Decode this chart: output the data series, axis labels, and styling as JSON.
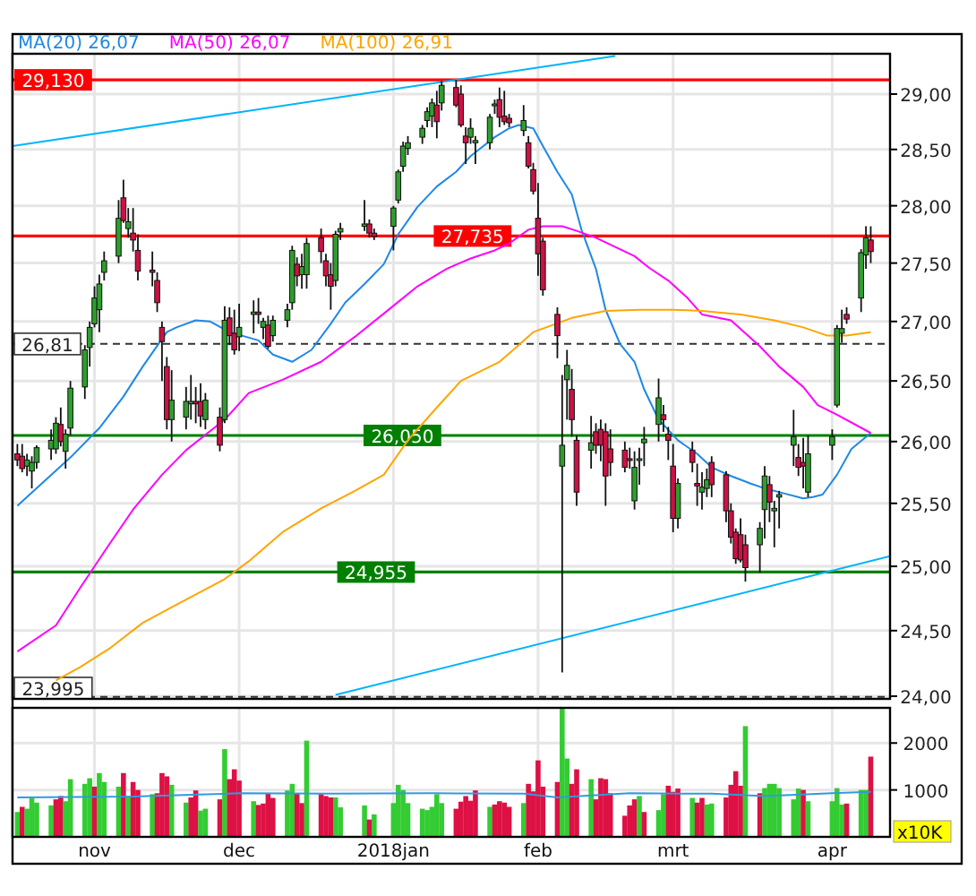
{
  "chart_data": [
    {
      "type": "candlestick",
      "log": "y",
      "grid": true,
      "legend": "top left",
      "tick_labels": "y",
      "xlim": [
        "2017-10-15",
        "2018-04-15"
      ],
      "xticks": [
        {
          "value": "2017-11-01",
          "label": null
        },
        {
          "value": "2017-12-01",
          "label": null
        },
        {
          "value": "2018-01-02",
          "label": null
        },
        {
          "value": "2018-02-01",
          "label": null
        },
        {
          "value": "2018-03-01",
          "label": null
        },
        {
          "value": "2018-04-03",
          "label": null
        }
      ],
      "ylim": [
        23.98,
        29.37
      ],
      "yticks": [
        {
          "value": 24,
          "label": "24,00"
        },
        {
          "value": 24.5,
          "label": "24,50"
        },
        {
          "value": 25,
          "label": "25,00"
        },
        {
          "value": 25.5,
          "label": "25,50"
        },
        {
          "value": 26,
          "label": "26,00"
        },
        {
          "value": 26.5,
          "label": "26,50"
        },
        {
          "value": 27,
          "label": "27,00"
        },
        {
          "value": 27.5,
          "label": "27,50"
        },
        {
          "value": 28,
          "label": "28,00"
        },
        {
          "value": 28.5,
          "label": "28,50"
        },
        {
          "value": 29,
          "label": "29,00"
        }
      ],
      "x": [
        "2017-10-16",
        "2017-10-17",
        "2017-10-18",
        "2017-10-19",
        "2017-10-20",
        "2017-10-23",
        "2017-10-24",
        "2017-10-25",
        "2017-10-26",
        "2017-10-27",
        "2017-10-30",
        "2017-10-31",
        "2017-11-01",
        "2017-11-02",
        "2017-11-03",
        "2017-11-06",
        "2017-11-07",
        "2017-11-08",
        "2017-11-09",
        "2017-11-10",
        "2017-11-13",
        "2017-11-14",
        "2017-11-15",
        "2017-11-16",
        "2017-11-17",
        "2017-11-20",
        "2017-11-21",
        "2017-11-22",
        "2017-11-23",
        "2017-11-24",
        "2017-11-27",
        "2017-11-28",
        "2017-11-29",
        "2017-11-30",
        "2017-12-01",
        "2017-12-04",
        "2017-12-05",
        "2017-12-06",
        "2017-12-07",
        "2017-12-08",
        "2017-12-11",
        "2017-12-12",
        "2017-12-13",
        "2017-12-14",
        "2017-12-15",
        "2017-12-18",
        "2017-12-19",
        "2017-12-20",
        "2017-12-21",
        "2017-12-22",
        "2017-12-27",
        "2017-12-28",
        "2017-12-29",
        "2018-01-02",
        "2018-01-03",
        "2018-01-04",
        "2018-01-05",
        "2018-01-08",
        "2018-01-09",
        "2018-01-10",
        "2018-01-11",
        "2018-01-12",
        "2018-01-15",
        "2018-01-16",
        "2018-01-17",
        "2018-01-18",
        "2018-01-19",
        "2018-01-22",
        "2018-01-23",
        "2018-01-24",
        "2018-01-25",
        "2018-01-26",
        "2018-01-29",
        "2018-01-30",
        "2018-01-31",
        "2018-02-01",
        "2018-02-02",
        "2018-02-05",
        "2018-02-06",
        "2018-02-07",
        "2018-02-08",
        "2018-02-09",
        "2018-02-12",
        "2018-02-13",
        "2018-02-14",
        "2018-02-15",
        "2018-02-16",
        "2018-02-19",
        "2018-02-20",
        "2018-02-21",
        "2018-02-22",
        "2018-02-23",
        "2018-02-26",
        "2018-02-27",
        "2018-02-28",
        "2018-03-01",
        "2018-03-02",
        "2018-03-05",
        "2018-03-06",
        "2018-03-07",
        "2018-03-08",
        "2018-03-09",
        "2018-03-12",
        "2018-03-13",
        "2018-03-14",
        "2018-03-15",
        "2018-03-16",
        "2018-03-19",
        "2018-03-20",
        "2018-03-21",
        "2018-03-22",
        "2018-03-23",
        "2018-03-26",
        "2018-03-27",
        "2018-03-28",
        "2018-03-29",
        "2018-04-03",
        "2018-04-04",
        "2018-04-05",
        "2018-04-06",
        "2018-04-09",
        "2018-04-10",
        "2018-04-11"
      ],
      "ohlc": [
        [
          25.9,
          25.98,
          25.8,
          25.85
        ],
        [
          25.88,
          25.98,
          25.75,
          25.78
        ],
        [
          25.8,
          25.9,
          25.72,
          25.85
        ],
        [
          25.76,
          25.88,
          25.62,
          25.83
        ],
        [
          25.83,
          25.97,
          25.78,
          25.95
        ],
        [
          25.94,
          26.1,
          25.85,
          26.01
        ],
        [
          25.94,
          26.2,
          25.9,
          26.15
        ],
        [
          26.14,
          26.28,
          25.96,
          26.0
        ],
        [
          25.92,
          26.1,
          25.78,
          26.06
        ],
        [
          26.11,
          26.5,
          26.05,
          26.44
        ],
        [
          26.45,
          26.8,
          26.35,
          26.76
        ],
        [
          26.78,
          27.0,
          26.62,
          26.95
        ],
        [
          26.98,
          27.3,
          26.95,
          27.2
        ],
        [
          27.1,
          27.4,
          26.91,
          27.32
        ],
        [
          27.42,
          27.6,
          27.35,
          27.52
        ],
        [
          27.56,
          28.05,
          27.5,
          27.89
        ],
        [
          28.07,
          28.23,
          27.85,
          27.87
        ],
        [
          27.8,
          27.98,
          27.72,
          27.86
        ],
        [
          27.76,
          27.98,
          27.6,
          27.7
        ],
        [
          27.61,
          27.75,
          27.35,
          27.43
        ],
        [
          27.44,
          27.6,
          27.3,
          27.42
        ],
        [
          27.35,
          27.42,
          27.08,
          27.16
        ],
        [
          26.95,
          27.0,
          26.5,
          26.83
        ],
        [
          26.62,
          26.7,
          26.1,
          26.18
        ],
        [
          26.18,
          26.59,
          26.0,
          26.34
        ],
        [
          26.2,
          26.45,
          26.1,
          26.33
        ],
        [
          26.31,
          26.55,
          26.18,
          26.33
        ],
        [
          26.33,
          26.45,
          26.15,
          26.31
        ],
        [
          26.33,
          26.48,
          26.12,
          26.21
        ],
        [
          26.18,
          26.4,
          26.1,
          26.34
        ],
        [
          26.2,
          26.28,
          25.92,
          25.97
        ],
        [
          26.18,
          27.13,
          26.15,
          27.01
        ],
        [
          27.03,
          27.12,
          26.8,
          26.88
        ],
        [
          26.9,
          27.1,
          26.72,
          26.76
        ],
        [
          26.87,
          27.15,
          26.75,
          26.95
        ],
        [
          27.06,
          27.18,
          26.9,
          27.08
        ],
        [
          27.08,
          27.2,
          26.98,
          27.06
        ],
        [
          26.95,
          27.03,
          26.85,
          27.0
        ],
        [
          26.97,
          27.05,
          26.77,
          26.79
        ],
        [
          26.88,
          27.05,
          26.83,
          27.01
        ],
        [
          27.01,
          27.15,
          26.95,
          27.1
        ],
        [
          27.16,
          27.65,
          27.1,
          27.61
        ],
        [
          27.49,
          27.55,
          27.3,
          27.39
        ],
        [
          27.4,
          27.58,
          27.28,
          27.47
        ],
        [
          27.4,
          27.72,
          27.28,
          27.67
        ],
        [
          27.72,
          27.8,
          27.5,
          27.6
        ],
        [
          27.52,
          27.58,
          27.3,
          27.39
        ],
        [
          27.4,
          27.5,
          27.1,
          27.3
        ],
        [
          27.35,
          27.78,
          27.3,
          27.75
        ],
        [
          27.77,
          27.85,
          27.7,
          27.8
        ],
        [
          27.82,
          28.05,
          27.78,
          27.84
        ],
        [
          27.84,
          27.88,
          27.72,
          27.76
        ],
        [
          27.76,
          27.8,
          27.7,
          27.73
        ],
        [
          27.82,
          28.0,
          27.61,
          27.98
        ],
        [
          28.05,
          28.32,
          28.02,
          28.3
        ],
        [
          28.35,
          28.57,
          28.3,
          28.53
        ],
        [
          28.51,
          28.62,
          28.45,
          28.56
        ],
        [
          28.61,
          28.72,
          28.55,
          28.69
        ],
        [
          28.76,
          28.88,
          28.7,
          28.84
        ],
        [
          28.8,
          28.96,
          28.7,
          28.92
        ],
        [
          28.9,
          29.03,
          28.6,
          28.75
        ],
        [
          28.92,
          29.12,
          28.85,
          29.08
        ],
        [
          29.06,
          29.13,
          28.88,
          28.9
        ],
        [
          29.0,
          29.08,
          28.7,
          28.72
        ],
        [
          28.62,
          28.7,
          28.37,
          28.56
        ],
        [
          28.61,
          28.78,
          28.55,
          28.69
        ],
        [
          28.56,
          28.62,
          28.37,
          28.58
        ],
        [
          28.56,
          28.82,
          28.5,
          28.79
        ],
        [
          28.9,
          28.95,
          28.82,
          28.91
        ],
        [
          28.95,
          29.06,
          28.7,
          28.79
        ],
        [
          28.8,
          29.03,
          28.72,
          28.75
        ],
        [
          28.78,
          28.82,
          28.7,
          28.74
        ],
        [
          28.67,
          28.9,
          28.62,
          28.76
        ],
        [
          28.56,
          28.62,
          28.33,
          28.35
        ],
        [
          28.32,
          28.38,
          28.1,
          28.13
        ],
        [
          27.89,
          28.2,
          27.39,
          27.58
        ],
        [
          27.69,
          27.72,
          27.22,
          27.27
        ],
        [
          27.06,
          27.12,
          26.69,
          26.88
        ],
        [
          25.8,
          26.55,
          24.18,
          25.97
        ],
        [
          26.51,
          26.76,
          26.18,
          26.63
        ],
        [
          26.43,
          26.6,
          26.04,
          26.18
        ],
        [
          26.01,
          26.05,
          25.48,
          25.59
        ],
        [
          25.93,
          26.21,
          25.78,
          25.99
        ],
        [
          26.08,
          26.15,
          25.9,
          25.97
        ],
        [
          26.1,
          26.18,
          25.84,
          25.97
        ],
        [
          26.08,
          26.15,
          25.48,
          25.72
        ],
        [
          25.94,
          26.1,
          25.72,
          25.83
        ],
        [
          25.93,
          26.0,
          25.75,
          25.79
        ],
        [
          25.86,
          25.95,
          25.78,
          25.85
        ],
        [
          25.52,
          25.92,
          25.45,
          25.79
        ],
        [
          25.85,
          25.95,
          25.65,
          25.86
        ],
        [
          25.99,
          26.12,
          25.8,
          26.02
        ],
        [
          26.14,
          26.52,
          26.0,
          26.36
        ],
        [
          26.22,
          26.3,
          26.08,
          26.18
        ],
        [
          26.06,
          26.12,
          25.85,
          26.01
        ],
        [
          25.8,
          25.98,
          25.27,
          25.38
        ],
        [
          25.38,
          25.7,
          25.3,
          25.66
        ],
        [
          25.93,
          26.0,
          25.75,
          25.83
        ],
        [
          25.66,
          25.82,
          25.48,
          25.64
        ],
        [
          25.59,
          25.75,
          25.45,
          25.63
        ],
        [
          25.62,
          25.78,
          25.55,
          25.69
        ],
        [
          25.83,
          25.88,
          25.55,
          25.65
        ],
        [
          25.73,
          25.76,
          25.35,
          25.44
        ],
        [
          25.44,
          25.5,
          25.18,
          25.23
        ],
        [
          25.27,
          25.3,
          25.02,
          25.06
        ],
        [
          25.25,
          25.38,
          25.03,
          25.05
        ],
        [
          25.17,
          25.25,
          24.88,
          24.99
        ],
        [
          25.17,
          25.35,
          24.95,
          25.3
        ],
        [
          25.45,
          25.8,
          25.22,
          25.72
        ],
        [
          25.65,
          25.72,
          25.35,
          25.51
        ],
        [
          25.44,
          25.52,
          25.15,
          25.46
        ],
        [
          25.55,
          25.6,
          25.3,
          25.57
        ],
        [
          25.97,
          26.26,
          25.8,
          26.04
        ],
        [
          25.87,
          25.98,
          25.72,
          25.79
        ],
        [
          25.83,
          26.03,
          25.62,
          25.8
        ],
        [
          25.59,
          26.05,
          25.55,
          25.9
        ],
        [
          25.97,
          26.1,
          25.85,
          26.04
        ],
        [
          26.3,
          26.97,
          26.28,
          26.94
        ],
        [
          26.9,
          27.1,
          26.82,
          26.94
        ],
        [
          27.06,
          27.12,
          26.98,
          27.02
        ],
        [
          27.2,
          27.62,
          27.08,
          27.59
        ],
        [
          27.57,
          27.82,
          27.45,
          27.72
        ],
        [
          27.7,
          27.82,
          27.5,
          27.6
        ]
      ],
      "series": [
        {
          "type": "line",
          "name": "MA(20) 26,07",
          "color": "#1e88e5",
          "x": [
            "2017-10-16",
            "2017-10-27",
            "2017-11-02",
            "2017-11-07",
            "2017-11-11",
            "2017-11-16",
            "2017-11-18",
            "2017-11-22",
            "2017-11-25",
            "2017-11-29",
            "2017-12-05",
            "2017-12-08",
            "2017-12-12",
            "2017-12-16",
            "2017-12-20",
            "2017-12-23",
            "2017-12-27",
            "2017-12-31",
            "2018-01-03",
            "2018-01-07",
            "2018-01-11",
            "2018-01-15",
            "2018-01-18",
            "2018-01-23",
            "2018-01-26",
            "2018-01-28",
            "2018-01-31",
            "2018-02-02",
            "2018-02-05",
            "2018-02-08",
            "2018-02-10",
            "2018-02-13",
            "2018-02-15",
            "2018-02-18",
            "2018-02-21",
            "2018-02-23",
            "2018-02-26",
            "2018-03-02",
            "2018-03-06",
            "2018-03-09",
            "2018-03-13",
            "2018-03-17",
            "2018-03-20",
            "2018-03-24",
            "2018-03-28",
            "2018-03-30",
            "2018-04-01",
            "2018-04-04",
            "2018-04-07",
            "2018-04-11"
          ],
          "values": [
            25.48,
            25.87,
            26.11,
            26.37,
            26.62,
            26.91,
            26.95,
            27.01,
            27.0,
            26.91,
            26.84,
            26.72,
            26.66,
            26.76,
            26.98,
            27.16,
            27.32,
            27.49,
            27.75,
            27.99,
            28.17,
            28.3,
            28.44,
            28.61,
            28.69,
            28.72,
            28.69,
            28.53,
            28.3,
            28.1,
            27.79,
            27.45,
            27.1,
            26.81,
            26.66,
            26.43,
            26.18,
            26.01,
            25.9,
            25.79,
            25.72,
            25.66,
            25.62,
            25.58,
            25.54,
            25.55,
            25.57,
            25.73,
            25.94,
            26.07
          ]
        },
        {
          "type": "line",
          "name": "MA(50) 26,07",
          "color": "#ff00ff",
          "x": [
            "2017-10-16",
            "2017-10-24",
            "2017-10-29",
            "2017-11-04",
            "2017-11-09",
            "2017-11-15",
            "2017-11-20",
            "2017-11-28",
            "2017-12-03",
            "2017-12-10",
            "2017-12-18",
            "2017-12-25",
            "2018-01-01",
            "2018-01-07",
            "2018-01-13",
            "2018-01-18",
            "2018-01-23",
            "2018-01-26",
            "2018-01-30",
            "2018-02-02",
            "2018-02-06",
            "2018-02-09",
            "2018-02-13",
            "2018-02-17",
            "2018-02-21",
            "2018-02-24",
            "2018-02-28",
            "2018-03-04",
            "2018-03-07",
            "2018-03-13",
            "2018-03-19",
            "2018-03-23",
            "2018-03-28",
            "2018-03-31",
            "2018-04-04",
            "2018-04-11"
          ],
          "values": [
            24.34,
            24.54,
            24.83,
            25.17,
            25.45,
            25.73,
            25.93,
            26.18,
            26.4,
            26.51,
            26.66,
            26.87,
            27.1,
            27.3,
            27.45,
            27.54,
            27.61,
            27.67,
            27.79,
            27.82,
            27.82,
            27.78,
            27.72,
            27.64,
            27.56,
            27.46,
            27.35,
            27.2,
            27.06,
            27.01,
            26.79,
            26.62,
            26.45,
            26.3,
            26.22,
            26.07
          ]
        },
        {
          "type": "line",
          "name": "MA(100) 26,91",
          "color": "#ffa500",
          "x": [
            "2017-10-24",
            "2017-10-29",
            "2017-11-04",
            "2017-11-11",
            "2017-11-18",
            "2017-11-28",
            "2017-12-03",
            "2017-12-10",
            "2017-12-18",
            "2017-12-25",
            "2017-12-31",
            "2018-01-05",
            "2018-01-11",
            "2018-01-16",
            "2018-01-24",
            "2018-01-26",
            "2018-01-31",
            "2018-02-08",
            "2018-02-15",
            "2018-02-22",
            "2018-03-01",
            "2018-03-07",
            "2018-03-15",
            "2018-03-22",
            "2018-03-28",
            "2018-04-02",
            "2018-04-06",
            "2018-04-11"
          ],
          "values": [
            24.12,
            24.22,
            24.36,
            24.56,
            24.7,
            24.9,
            25.04,
            25.27,
            25.46,
            25.6,
            25.73,
            26.01,
            26.28,
            26.5,
            26.66,
            26.73,
            26.91,
            27.03,
            27.09,
            27.1,
            27.1,
            27.09,
            27.06,
            27.01,
            26.95,
            26.88,
            26.88,
            26.91
          ]
        },
        {
          "type": "line",
          "color": "#00b4ff",
          "x": [
            "2017-10-15",
            "2018-02-17"
          ],
          "values": [
            28.53,
            29.35
          ]
        },
        {
          "type": "line",
          "color": "#00b4ff",
          "x": [
            "2017-12-21",
            "2018-04-15"
          ],
          "values": [
            24.01,
            25.08
          ]
        }
      ],
      "ref_lines": [
        {
          "axis": "y",
          "value": 29.13,
          "label": "29,130",
          "color": "#ff0000"
        },
        {
          "axis": "y",
          "value": 27.735,
          "label": "27,735",
          "color": "#ff0000"
        },
        {
          "axis": "y",
          "value": 26.81,
          "label": "26,81",
          "color": "#333333",
          "line_style": "dashed"
        },
        {
          "axis": "y",
          "value": 26.05,
          "label": "26,050",
          "color": "#008000"
        },
        {
          "axis": "y",
          "value": 24.955,
          "label": "24,955",
          "color": "#008000"
        },
        {
          "axis": "y",
          "value": 23.995,
          "label": "23,995",
          "color": "#333333",
          "line_style": "dashed"
        }
      ]
    },
    {
      "type": "bar",
      "grid": true,
      "ylabel": "x10K",
      "xlim": [
        "2017-10-15",
        "2018-04-15"
      ],
      "xticks": [
        {
          "value": "2017-11-01",
          "label": "nov"
        },
        {
          "value": "2017-12-01",
          "label": "dec"
        },
        {
          "value": "2018-01-02",
          "label": "2018jan"
        },
        {
          "value": "2018-02-01",
          "label": "feb"
        },
        {
          "value": "2018-03-01",
          "label": "mrt"
        },
        {
          "value": "2018-04-03",
          "label": "apr"
        }
      ],
      "ylim": [
        0,
        2750
      ],
      "yticks": [
        1000,
        2000
      ],
      "x": [
        "2017-10-16",
        "2017-10-17",
        "2017-10-18",
        "2017-10-19",
        "2017-10-20",
        "2017-10-23",
        "2017-10-24",
        "2017-10-25",
        "2017-10-26",
        "2017-10-27",
        "2017-10-30",
        "2017-10-31",
        "2017-11-01",
        "2017-11-02",
        "2017-11-03",
        "2017-11-06",
        "2017-11-07",
        "2017-11-08",
        "2017-11-09",
        "2017-11-10",
        "2017-11-13",
        "2017-11-14",
        "2017-11-15",
        "2017-11-16",
        "2017-11-17",
        "2017-11-20",
        "2017-11-21",
        "2017-11-22",
        "2017-11-23",
        "2017-11-24",
        "2017-11-27",
        "2017-11-28",
        "2017-11-29",
        "2017-11-30",
        "2017-12-01",
        "2017-12-04",
        "2017-12-05",
        "2017-12-06",
        "2017-12-07",
        "2017-12-08",
        "2017-12-11",
        "2017-12-12",
        "2017-12-13",
        "2017-12-14",
        "2017-12-15",
        "2017-12-18",
        "2017-12-19",
        "2017-12-20",
        "2017-12-21",
        "2017-12-22",
        "2017-12-27",
        "2017-12-28",
        "2017-12-29",
        "2018-01-02",
        "2018-01-03",
        "2018-01-04",
        "2018-01-05",
        "2018-01-08",
        "2018-01-09",
        "2018-01-10",
        "2018-01-11",
        "2018-01-12",
        "2018-01-15",
        "2018-01-16",
        "2018-01-17",
        "2018-01-18",
        "2018-01-19",
        "2018-01-22",
        "2018-01-23",
        "2018-01-24",
        "2018-01-25",
        "2018-01-26",
        "2018-01-29",
        "2018-01-30",
        "2018-01-31",
        "2018-02-01",
        "2018-02-02",
        "2018-02-05",
        "2018-02-06",
        "2018-02-07",
        "2018-02-08",
        "2018-02-09",
        "2018-02-12",
        "2018-02-13",
        "2018-02-14",
        "2018-02-15",
        "2018-02-16",
        "2018-02-19",
        "2018-02-20",
        "2018-02-21",
        "2018-02-22",
        "2018-02-23",
        "2018-02-26",
        "2018-02-27",
        "2018-02-28",
        "2018-03-01",
        "2018-03-02",
        "2018-03-05",
        "2018-03-06",
        "2018-03-07",
        "2018-03-08",
        "2018-03-09",
        "2018-03-12",
        "2018-03-13",
        "2018-03-14",
        "2018-03-15",
        "2018-03-16",
        "2018-03-19",
        "2018-03-20",
        "2018-03-21",
        "2018-03-22",
        "2018-03-23",
        "2018-03-26",
        "2018-03-27",
        "2018-03-28",
        "2018-03-29",
        "2018-04-03",
        "2018-04-04",
        "2018-04-05",
        "2018-04-06",
        "2018-04-09",
        "2018-04-10",
        "2018-04-11"
      ],
      "values": [
        530,
        640,
        600,
        830,
        730,
        670,
        800,
        870,
        760,
        1230,
        1130,
        1250,
        1070,
        1360,
        1170,
        1070,
        1360,
        870,
        1170,
        1000,
        910,
        930,
        1360,
        1290,
        1110,
        730,
        840,
        990,
        560,
        600,
        800,
        1870,
        1230,
        1440,
        1200,
        760,
        680,
        710,
        920,
        830,
        990,
        1130,
        920,
        720,
        2050,
        910,
        870,
        840,
        840,
        630,
        670,
        370,
        480,
        720,
        1110,
        1000,
        720,
        600,
        570,
        640,
        910,
        720,
        600,
        750,
        870,
        770,
        990,
        640,
        690,
        760,
        730,
        640,
        720,
        1130,
        970,
        1630,
        1070,
        1170,
        2730,
        1670,
        1130,
        1440,
        1230,
        800,
        1250,
        1230,
        930,
        450,
        670,
        800,
        870,
        530,
        570,
        910,
        1090,
        960,
        1030,
        830,
        730,
        830,
        690,
        710,
        840,
        1110,
        1400,
        1090,
        2360,
        930,
        1040,
        1130,
        1130,
        1040,
        800,
        1030,
        1000,
        760,
        760,
        1040,
        690,
        710,
        1000,
        1000,
        1710
      ],
      "colors": [
        "#33cc33",
        "#dd1144",
        "#33cc33",
        "#33cc33",
        "#33cc33",
        "#33cc33",
        "#dd1144",
        "#dd1144",
        "#33cc33",
        "#33cc33",
        "#33cc33",
        "#33cc33",
        "#dd1144",
        "#33cc33",
        "#33cc33",
        "#33cc33",
        "#dd1144",
        "#33cc33",
        "#dd1144",
        "#dd1144",
        "#33cc33",
        "#dd1144",
        "#dd1144",
        "#dd1144",
        "#33cc33",
        "#33cc33",
        "#dd1144",
        "#dd1144",
        "#33cc33",
        "#33cc33",
        "#dd1144",
        "#33cc33",
        "#dd1144",
        "#dd1144",
        "#dd1144",
        "#33cc33",
        "#dd1144",
        "#dd1144",
        "#dd1144",
        "#dd1144",
        "#33cc33",
        "#33cc33",
        "#dd1144",
        "#dd1144",
        "#33cc33",
        "#dd1144",
        "#dd1144",
        "#dd1144",
        "#33cc33",
        "#33cc33",
        "#33cc33",
        "#dd1144",
        "#33cc33",
        "#33cc33",
        "#33cc33",
        "#33cc33",
        "#33cc33",
        "#33cc33",
        "#33cc33",
        "#33cc33",
        "#33cc33",
        "#33cc33",
        "#dd1144",
        "#dd1144",
        "#dd1144",
        "#dd1144",
        "#dd1144",
        "#33cc33",
        "#dd1144",
        "#dd1144",
        "#dd1144",
        "#dd1144",
        "#33cc33",
        "#dd1144",
        "#dd1144",
        "#dd1144",
        "#dd1144",
        "#dd1144",
        "#33cc33",
        "#33cc33",
        "#dd1144",
        "#dd1144",
        "#33cc33",
        "#dd1144",
        "#dd1144",
        "#dd1144",
        "#dd1144",
        "#dd1144",
        "#dd1144",
        "#dd1144",
        "#33cc33",
        "#dd1144",
        "#33cc33",
        "#33cc33",
        "#dd1144",
        "#dd1144",
        "#dd1144",
        "#33cc33",
        "#dd1144",
        "#dd1144",
        "#33cc33",
        "#33cc33",
        "#dd1144",
        "#dd1144",
        "#dd1144",
        "#dd1144",
        "#33cc33",
        "#dd1144",
        "#33cc33",
        "#33cc33",
        "#33cc33",
        "#33cc33",
        "#33cc33",
        "#33cc33",
        "#dd1144",
        "#33cc33",
        "#33cc33",
        "#33cc33",
        "#33cc33",
        "#dd1144",
        "#33cc33",
        "#33cc33",
        "#dd1144"
      ],
      "series": [
        {
          "type": "line",
          "color": "#3399dd",
          "x": [
            "2017-10-16",
            "2017-11-09",
            "2017-12-01",
            "2017-12-20",
            "2018-01-10",
            "2018-01-29",
            "2018-02-05",
            "2018-02-20",
            "2018-03-09",
            "2018-03-20",
            "2018-04-03",
            "2018-04-11"
          ],
          "values": [
            840,
            860,
            930,
            920,
            930,
            920,
            840,
            930,
            920,
            870,
            930,
            960
          ]
        }
      ]
    }
  ]
}
